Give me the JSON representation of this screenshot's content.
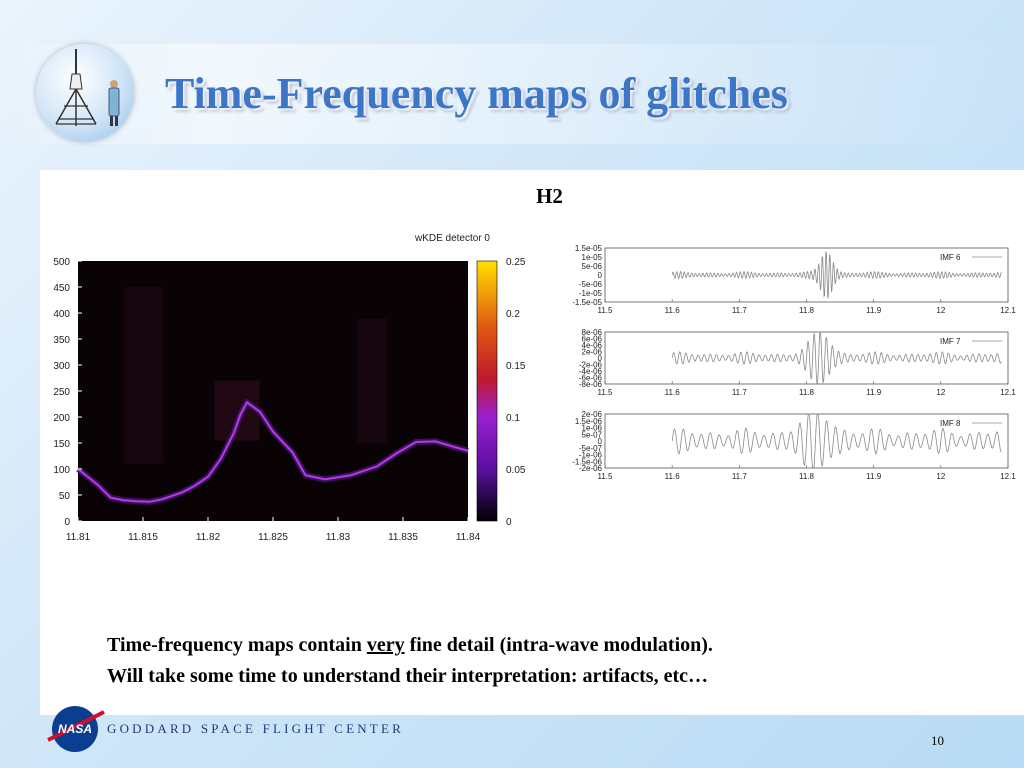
{
  "slide": {
    "title": "Time-Frequency maps of glitches",
    "detector_label": "H2",
    "bottom_line1_pre": "Time-frequency maps contain ",
    "bottom_line1_emph": "very",
    "bottom_line1_post": " fine detail (intra-wave modulation).",
    "bottom_line2": "Will take some time to understand their interpretation: artifacts, etc…",
    "footer_org": "GODDARD SPACE FLIGHT CENTER",
    "nasa_text": "NASA",
    "page_number": "10"
  },
  "colors": {
    "title": "#3b76c9",
    "heatmap_bg": "#0a0306",
    "ridge": "#b23ce6",
    "imf_line": "#8a8a8a"
  },
  "chart_data": [
    {
      "type": "heatmap",
      "title": "wKDE detector 0",
      "xlim": [
        11.81,
        11.84
      ],
      "ylim": [
        0,
        500
      ],
      "xticks": [
        "11.81",
        "11.815",
        "11.82",
        "11.825",
        "11.83",
        "11.835",
        "11.84"
      ],
      "yticks": [
        "0",
        "50",
        "100",
        "150",
        "200",
        "250",
        "300",
        "350",
        "400",
        "450",
        "500"
      ],
      "colorbar": {
        "range": [
          0,
          0.25
        ],
        "ticks": [
          "0",
          "0.05",
          "0.1",
          "0.15",
          "0.2",
          "0.25"
        ]
      },
      "ridge": {
        "x": [
          11.81,
          11.8115,
          11.8125,
          11.8135,
          11.8145,
          11.8155,
          11.8165,
          11.818,
          11.819,
          11.82,
          11.821,
          11.822,
          11.8225,
          11.823,
          11.824,
          11.825,
          11.8265,
          11.8275,
          11.829,
          11.831,
          11.833,
          11.8345,
          11.836,
          11.8375,
          11.839,
          11.84
        ],
        "y": [
          100,
          70,
          45,
          40,
          38,
          37,
          42,
          55,
          68,
          85,
          120,
          170,
          205,
          228,
          210,
          172,
          132,
          88,
          80,
          88,
          105,
          130,
          152,
          153,
          142,
          135
        ]
      }
    },
    {
      "type": "line",
      "legend": "IMF 6",
      "xlim": [
        11.5,
        12.1
      ],
      "xticks": [
        "11.5",
        "11.6",
        "11.7",
        "11.8",
        "11.9",
        "12",
        "12.1"
      ],
      "yticks": [
        "1.5e-05",
        "1e-05",
        "5e-06",
        "0",
        "-5e-06",
        "-1e-05",
        "-1.5e-05"
      ],
      "ylim": [
        -1.5e-05,
        1.5e-05
      ],
      "signal": {
        "start": 11.6,
        "end": 12.09,
        "base_amp": 1.2e-06,
        "burst_center": 11.83,
        "burst_amp": 1.3e-05,
        "burst_width": 0.012,
        "freq": 180
      }
    },
    {
      "type": "line",
      "legend": "IMF 7",
      "xlim": [
        11.5,
        12.1
      ],
      "xticks": [
        "11.5",
        "11.6",
        "11.7",
        "11.8",
        "11.9",
        "12",
        "12.1"
      ],
      "yticks": [
        "8e-06",
        "6e-06",
        "4e-06",
        "2e-06",
        "0",
        "-2e-06",
        "-4e-06",
        "-6e-06",
        "-8e-06"
      ],
      "ylim": [
        -8e-06,
        8e-06
      ],
      "signal": {
        "start": 11.6,
        "end": 12.09,
        "base_amp": 1.2e-06,
        "burst_center": 11.82,
        "burst_amp": 7e-06,
        "burst_width": 0.02,
        "freq": 110
      }
    },
    {
      "type": "line",
      "legend": "IMF 8",
      "xlim": [
        11.5,
        12.1
      ],
      "xticks": [
        "11.5",
        "11.6",
        "11.7",
        "11.8",
        "11.9",
        "12",
        "12.1"
      ],
      "yticks": [
        "2e-06",
        "1.5e-06",
        "1e-06",
        "5e-07",
        "0",
        "-5e-07",
        "-1e-06",
        "-1.5e-06",
        "-2e-06"
      ],
      "ylim": [
        -2e-06,
        2e-06
      ],
      "signal": {
        "start": 11.6,
        "end": 12.09,
        "base_amp": 6e-07,
        "burst_center": 11.815,
        "burst_amp": 1.4e-06,
        "burst_width": 0.03,
        "freq": 75
      }
    }
  ]
}
